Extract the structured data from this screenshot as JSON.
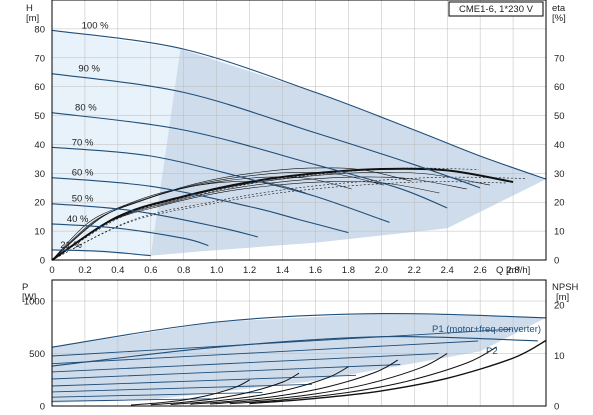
{
  "chart_data": [
    {
      "type": "line",
      "model_label": "CME1-6, 1*230 V",
      "y_label_left": "H",
      "y_unit_left": "[m]",
      "y_label_right": "eta",
      "y_unit_right": "[%]",
      "x_label": "Q [m³/h]",
      "xlim": [
        0,
        3.0
      ],
      "ylim": [
        0,
        90
      ],
      "x_ticks": [
        "0",
        "0.2",
        "0.4",
        "0.6",
        "0.8",
        "1.0",
        "1.2",
        "1.4",
        "1.6",
        "1.8",
        "2.0",
        "2.2",
        "2.4",
        "2.6",
        "2.8"
      ],
      "y_ticks_left": [
        "0",
        "10",
        "20",
        "30",
        "40",
        "50",
        "60",
        "70",
        "80"
      ],
      "y_ticks_right": [
        "0",
        "10",
        "20",
        "30",
        "40",
        "50",
        "60",
        "70"
      ],
      "grid": true,
      "colors": {
        "curve": "#1f4e79",
        "envelope": "#cfdceb",
        "envelope_light": "#e8f2fb",
        "eff": "#111111"
      },
      "speed_labels": [
        "100 %",
        "90 %",
        "80 %",
        "70 %",
        "60 %",
        "50 %",
        "40 %",
        "21 %"
      ],
      "series": [
        {
          "name": "100 %",
          "x": [
            0,
            0.8,
            1.6,
            2.2,
            2.6,
            3.0
          ],
          "y": [
            79.5,
            73,
            58,
            45,
            36,
            28
          ]
        },
        {
          "name": "90 %",
          "x": [
            0,
            0.8,
            1.6,
            2.2,
            2.6
          ],
          "y": [
            64.5,
            58,
            44,
            33,
            25
          ]
        },
        {
          "name": "80 %",
          "x": [
            0,
            0.8,
            1.6,
            2.1,
            2.4
          ],
          "y": [
            51,
            45,
            33,
            25,
            18
          ]
        },
        {
          "name": "70 %",
          "x": [
            0,
            0.6,
            1.2,
            1.6,
            2.05
          ],
          "y": [
            39,
            36,
            28,
            22,
            13
          ]
        },
        {
          "name": "60 %",
          "x": [
            0,
            0.6,
            1.2,
            1.5,
            1.8
          ],
          "y": [
            28.5,
            25.5,
            18.5,
            14,
            9.5
          ]
        },
        {
          "name": "50 %",
          "x": [
            0,
            0.5,
            1.0,
            1.25
          ],
          "y": [
            19.5,
            17,
            11.5,
            8
          ]
        },
        {
          "name": "40 %",
          "x": [
            0,
            0.4,
            0.8,
            0.95
          ],
          "y": [
            12.5,
            11,
            7.5,
            5
          ]
        },
        {
          "name": "21 %",
          "x": [
            0,
            0.3,
            0.6
          ],
          "y": [
            3.5,
            3,
            1.5
          ]
        }
      ],
      "efficiency": {
        "x": [
          0,
          0.4,
          0.8,
          1.2,
          1.6,
          2.0,
          2.4,
          2.8
        ],
        "y": [
          0,
          15,
          22,
          27,
          30,
          31.5,
          31,
          27
        ]
      }
    },
    {
      "type": "line",
      "y_label_left": "P",
      "y_unit_left": "[W]",
      "y_label_right": "NPSH",
      "y_unit_right": "[m]",
      "xlim": [
        0,
        3.0
      ],
      "ylim": [
        0,
        1200
      ],
      "y_ticks_left": [
        "0",
        "500",
        "1000"
      ],
      "y_ticks_right": [
        "0",
        "10",
        "20"
      ],
      "grid": true,
      "colors": {
        "curve": "#1f4e79",
        "envelope": "#cfdceb",
        "npsh": "#111111"
      },
      "annotations": [
        "P1 (motor+freq.converter)",
        "P2"
      ],
      "series": [
        {
          "name": "P1 (motor+freq.converter)",
          "x": [
            0,
            1.0,
            2.0,
            3.0
          ],
          "y": [
            560,
            800,
            880,
            840
          ]
        },
        {
          "name": "P2",
          "x": [
            0,
            1.0,
            2.0,
            2.95
          ],
          "y": [
            380,
            560,
            660,
            620
          ]
        }
      ],
      "npsh": {
        "x": [
          1.2,
          1.6,
          2.0,
          2.4,
          2.8,
          3.0
        ],
        "y": [
          0.5,
          1.5,
          3,
          5.5,
          9.5,
          13
        ]
      }
    }
  ]
}
